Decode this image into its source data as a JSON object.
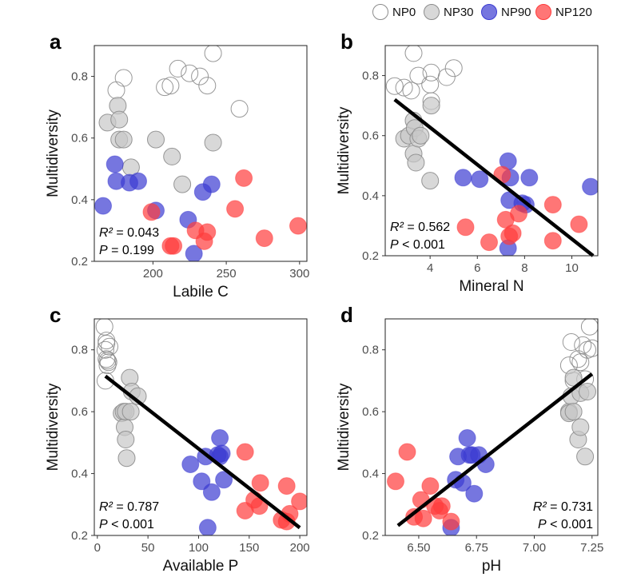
{
  "legend": {
    "entries": [
      {
        "label": "NP0",
        "fill": "#ffffff",
        "stroke": "#8c8c8c"
      },
      {
        "label": "NP30",
        "fill": "#c8c8c8",
        "stroke": "#8c8c8c"
      },
      {
        "label": "NP90",
        "fill": "#3c3cd2",
        "stroke": "#3c3cd2"
      },
      {
        "label": "NP120",
        "fill": "#ff3c3c",
        "stroke": "#ff3c3c"
      }
    ]
  },
  "chart_data": [
    {
      "letter": "a",
      "type": "scatter",
      "xlabel": "Labile C",
      "ylabel": "Multidiversity",
      "xlim": [
        160,
        305
      ],
      "ylim": [
        0.2,
        0.9
      ],
      "xticks": [
        200,
        250,
        300
      ],
      "yticks": [
        0.2,
        0.4,
        0.6,
        0.8
      ],
      "stats": {
        "r2_label": "R² = 0.043",
        "p_label": "P = 0.199",
        "position": "bottom-left"
      },
      "fit_line": null,
      "series": [
        {
          "name": "NP0",
          "points": [
            [
              180,
              0.795
            ],
            [
              175,
              0.755
            ],
            [
              208,
              0.765
            ],
            [
              212,
              0.77
            ],
            [
              217,
              0.825
            ],
            [
              225,
              0.81
            ],
            [
              232,
              0.8
            ],
            [
              237,
              0.77
            ],
            [
              241,
              0.875
            ],
            [
              259,
              0.695
            ]
          ]
        },
        {
          "name": "NP30",
          "points": [
            [
              169,
              0.65
            ],
            [
              176,
              0.705
            ],
            [
              177,
              0.66
            ],
            [
              177,
              0.595
            ],
            [
              180,
              0.595
            ],
            [
              185,
              0.505
            ],
            [
              202,
              0.595
            ],
            [
              213,
              0.54
            ],
            [
              220,
              0.45
            ],
            [
              241,
              0.585
            ]
          ]
        },
        {
          "name": "NP90",
          "points": [
            [
              166,
              0.38
            ],
            [
              174,
              0.515
            ],
            [
              175,
              0.46
            ],
            [
              184,
              0.455
            ],
            [
              190,
              0.46
            ],
            [
              202,
              0.365
            ],
            [
              224,
              0.335
            ],
            [
              228,
              0.225
            ],
            [
              234,
              0.425
            ],
            [
              240,
              0.45
            ]
          ]
        },
        {
          "name": "NP120",
          "points": [
            [
              199,
              0.36
            ],
            [
              212,
              0.25
            ],
            [
              214,
              0.25
            ],
            [
              229,
              0.3
            ],
            [
              235,
              0.265
            ],
            [
              237,
              0.295
            ],
            [
              256,
              0.37
            ],
            [
              262,
              0.47
            ],
            [
              276,
              0.275
            ],
            [
              299,
              0.315
            ]
          ]
        }
      ]
    },
    {
      "letter": "b",
      "type": "scatter",
      "xlabel": "Mineral N",
      "ylabel": "Multidiversity",
      "xlim": [
        2.1,
        11.1
      ],
      "ylim": [
        0.2,
        0.9
      ],
      "xticks": [
        4,
        6,
        8,
        10
      ],
      "yticks": [
        0.2,
        0.4,
        0.6,
        0.8
      ],
      "stats": {
        "r2_label": "R² = 0.562",
        "p_label": "P < 0.001",
        "position": "bottom-left"
      },
      "fit_line": [
        [
          2.5,
          0.72
        ],
        [
          10.9,
          0.2
        ]
      ],
      "series": [
        {
          "name": "NP0",
          "points": [
            [
              2.5,
              0.765
            ],
            [
              2.9,
              0.76
            ],
            [
              3.2,
              0.75
            ],
            [
              3.3,
              0.875
            ],
            [
              3.5,
              0.8
            ],
            [
              4.0,
              0.77
            ],
            [
              4.05,
              0.715
            ],
            [
              4.05,
              0.81
            ],
            [
              4.7,
              0.795
            ],
            [
              5.0,
              0.825
            ]
          ]
        },
        {
          "name": "NP30",
          "points": [
            [
              2.9,
              0.59
            ],
            [
              3.1,
              0.6
            ],
            [
              3.3,
              0.65
            ],
            [
              3.35,
              0.625
            ],
            [
              3.3,
              0.54
            ],
            [
              3.4,
              0.51
            ],
            [
              3.5,
              0.59
            ],
            [
              3.6,
              0.6
            ],
            [
              4.0,
              0.45
            ],
            [
              4.05,
              0.7
            ]
          ]
        },
        {
          "name": "NP90",
          "points": [
            [
              5.4,
              0.46
            ],
            [
              6.1,
              0.455
            ],
            [
              7.3,
              0.515
            ],
            [
              7.35,
              0.385
            ],
            [
              7.3,
              0.225
            ],
            [
              7.4,
              0.46
            ],
            [
              7.9,
              0.375
            ],
            [
              8.05,
              0.37
            ],
            [
              8.2,
              0.46
            ],
            [
              10.8,
              0.43
            ]
          ]
        },
        {
          "name": "NP120",
          "points": [
            [
              5.5,
              0.295
            ],
            [
              6.5,
              0.245
            ],
            [
              7.05,
              0.47
            ],
            [
              7.2,
              0.32
            ],
            [
              7.35,
              0.265
            ],
            [
              7.5,
              0.275
            ],
            [
              7.75,
              0.34
            ],
            [
              9.2,
              0.37
            ],
            [
              9.2,
              0.25
            ],
            [
              10.3,
              0.305
            ]
          ]
        }
      ]
    },
    {
      "letter": "c",
      "type": "scatter",
      "xlabel": "Available P",
      "ylabel": "Multidiversity",
      "xlim": [
        -3,
        207
      ],
      "ylim": [
        0.2,
        0.9
      ],
      "xticks": [
        0,
        50,
        100,
        150,
        200
      ],
      "yticks": [
        0.2,
        0.4,
        0.6,
        0.8
      ],
      "stats": {
        "r2_label": "R² = 0.787",
        "p_label": "P < 0.001",
        "position": "bottom-left"
      },
      "fit_line": [
        [
          8,
          0.715
        ],
        [
          200,
          0.225
        ]
      ],
      "series": [
        {
          "name": "NP0",
          "points": [
            [
              7,
              0.875
            ],
            [
              8,
              0.8
            ],
            [
              9,
              0.83
            ],
            [
              9,
              0.77
            ],
            [
              10,
              0.75
            ],
            [
              8,
              0.7
            ],
            [
              9,
              0.82
            ],
            [
              10,
              0.765
            ],
            [
              11,
              0.76
            ],
            [
              12,
              0.81
            ]
          ]
        },
        {
          "name": "NP30",
          "points": [
            [
              24,
              0.595
            ],
            [
              26,
              0.6
            ],
            [
              27,
              0.55
            ],
            [
              28,
              0.51
            ],
            [
              28,
              0.6
            ],
            [
              29,
              0.45
            ],
            [
              32,
              0.71
            ],
            [
              33,
              0.6
            ],
            [
              34,
              0.665
            ],
            [
              40,
              0.65
            ]
          ]
        },
        {
          "name": "NP90",
          "points": [
            [
              92,
              0.43
            ],
            [
              103,
              0.375
            ],
            [
              107,
              0.455
            ],
            [
              109,
              0.225
            ],
            [
              113,
              0.34
            ],
            [
              119,
              0.46
            ],
            [
              121,
              0.455
            ],
            [
              121,
              0.515
            ],
            [
              123,
              0.465
            ],
            [
              125,
              0.38
            ]
          ]
        },
        {
          "name": "NP120",
          "points": [
            [
              146,
              0.47
            ],
            [
              146,
              0.28
            ],
            [
              155,
              0.315
            ],
            [
              160,
              0.295
            ],
            [
              161,
              0.37
            ],
            [
              182,
              0.25
            ],
            [
              187,
              0.36
            ],
            [
              187,
              0.245
            ],
            [
              190,
              0.27
            ],
            [
              200,
              0.31
            ]
          ]
        }
      ]
    },
    {
      "letter": "d",
      "type": "scatter",
      "xlabel": "pH",
      "ylabel": "Multidiversity",
      "xlim": [
        6.355,
        7.275
      ],
      "ylim": [
        0.2,
        0.9
      ],
      "xticks": [
        6.5,
        6.75,
        7.0,
        7.25
      ],
      "xticklabels": [
        "6.50",
        "6.75",
        "7.00",
        "7.25"
      ],
      "yticks": [
        0.2,
        0.4,
        0.6,
        0.8
      ],
      "stats": {
        "r2_label": "R² = 0.731",
        "p_label": "P < 0.001",
        "position": "bottom-right"
      },
      "fit_line": [
        [
          6.41,
          0.232
        ],
        [
          7.25,
          0.722
        ]
      ],
      "series": [
        {
          "name": "NP0",
          "points": [
            [
              7.15,
              0.75
            ],
            [
              7.16,
              0.825
            ],
            [
              7.17,
              0.7
            ],
            [
              7.19,
              0.77
            ],
            [
              7.2,
              0.76
            ],
            [
              7.21,
              0.815
            ],
            [
              7.22,
              0.705
            ],
            [
              7.23,
              0.8
            ],
            [
              7.24,
              0.875
            ],
            [
              7.25,
              0.805
            ]
          ]
        },
        {
          "name": "NP30",
          "points": [
            [
              7.15,
              0.6
            ],
            [
              7.15,
              0.595
            ],
            [
              7.16,
              0.65
            ],
            [
              7.17,
              0.6
            ],
            [
              7.17,
              0.71
            ],
            [
              7.19,
              0.51
            ],
            [
              7.2,
              0.55
            ],
            [
              7.2,
              0.66
            ],
            [
              7.22,
              0.455
            ],
            [
              7.23,
              0.665
            ]
          ]
        },
        {
          "name": "NP90",
          "points": [
            [
              6.64,
              0.225
            ],
            [
              6.66,
              0.38
            ],
            [
              6.67,
              0.455
            ],
            [
              6.69,
              0.37
            ],
            [
              6.71,
              0.515
            ],
            [
              6.72,
              0.46
            ],
            [
              6.73,
              0.46
            ],
            [
              6.74,
              0.335
            ],
            [
              6.76,
              0.46
            ],
            [
              6.79,
              0.43
            ]
          ]
        },
        {
          "name": "NP120",
          "points": [
            [
              6.4,
              0.375
            ],
            [
              6.45,
              0.47
            ],
            [
              6.48,
              0.26
            ],
            [
              6.51,
              0.315
            ],
            [
              6.52,
              0.255
            ],
            [
              6.55,
              0.36
            ],
            [
              6.57,
              0.295
            ],
            [
              6.59,
              0.28
            ],
            [
              6.6,
              0.295
            ],
            [
              6.64,
              0.245
            ]
          ]
        }
      ]
    }
  ]
}
